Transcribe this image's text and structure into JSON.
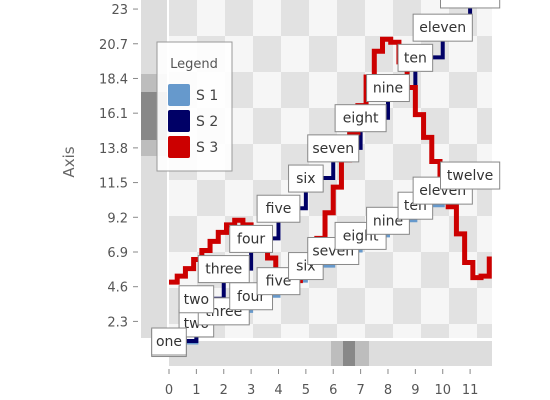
{
  "chart_data": {
    "type": "line",
    "title": "",
    "xlabel": "",
    "ylabel": "Axis",
    "x_ticks": [
      "0",
      "1",
      "2",
      "3",
      "4",
      "5",
      "6",
      "7",
      "8",
      "9",
      "10",
      "11"
    ],
    "y_ticks": [
      "2.3",
      "4.6",
      "6.9",
      "9.2",
      "11.5",
      "13.8",
      "16.1",
      "18.4",
      "20.7",
      "23"
    ],
    "xlim": [
      0,
      11.8
    ],
    "ylim": [
      1.2,
      23.6
    ],
    "grid": true,
    "legend": {
      "title": "Legend",
      "placement": "top-left",
      "entries": [
        {
          "label": "S 1",
          "color": "#6699cc"
        },
        {
          "label": "S 2",
          "color": "#000066"
        },
        {
          "label": "S 3",
          "color": "#cc0000"
        }
      ]
    },
    "series": [
      {
        "legend": "S 1",
        "color": "#6699cc",
        "x": [
          0,
          1,
          2,
          3,
          4,
          5,
          6,
          7,
          8,
          9,
          10,
          11
        ],
        "y": [
          0.9,
          2.2,
          3.0,
          4.0,
          5.0,
          6.0,
          7.0,
          8.0,
          9.0,
          10.0,
          11.0,
          12.0
        ],
        "labels": [
          "one",
          "two",
          "three",
          "four",
          "five",
          "six",
          "seven",
          "eight",
          "nine",
          "ten",
          "eleven",
          "twelve"
        ]
      },
      {
        "legend": "S 2",
        "color": "#000066",
        "x": [
          0,
          1,
          2,
          3,
          4,
          5,
          6,
          7,
          8,
          9,
          10,
          11
        ],
        "y": [
          1.0,
          3.8,
          5.8,
          7.8,
          9.8,
          11.8,
          13.8,
          15.8,
          17.8,
          19.8,
          21.8,
          24.0
        ],
        "labels": [
          "one",
          "two",
          "three",
          "four",
          "five",
          "six",
          "seven",
          "eight",
          "nine",
          "ten",
          "eleven",
          "twelve"
        ]
      },
      {
        "legend": "S 3",
        "color": "#cc0000",
        "x": [
          0.0,
          0.3,
          0.6,
          0.9,
          1.2,
          1.5,
          1.8,
          2.1,
          2.4,
          2.7,
          3.0,
          3.3,
          3.6,
          3.9,
          4.2,
          4.5,
          4.8,
          5.1,
          5.4,
          5.7,
          6.0,
          6.3,
          6.6,
          6.9,
          7.2,
          7.5,
          7.8,
          8.1,
          8.4,
          8.7,
          9.0,
          9.3,
          9.6,
          9.9,
          10.2,
          10.5,
          10.8,
          11.1,
          11.4,
          11.7
        ],
        "y": [
          4.9,
          5.3,
          5.8,
          6.4,
          7.0,
          7.6,
          8.2,
          8.7,
          9.0,
          8.7,
          8.1,
          7.3,
          6.5,
          5.7,
          5.2,
          5.0,
          5.4,
          6.4,
          7.8,
          9.5,
          11.2,
          13.0,
          14.8,
          16.6,
          18.5,
          20.2,
          21.0,
          20.8,
          19.5,
          17.8,
          16.0,
          14.5,
          12.9,
          11.2,
          9.9,
          8.1,
          6.2,
          5.2,
          5.3,
          6.6
        ]
      }
    ]
  }
}
